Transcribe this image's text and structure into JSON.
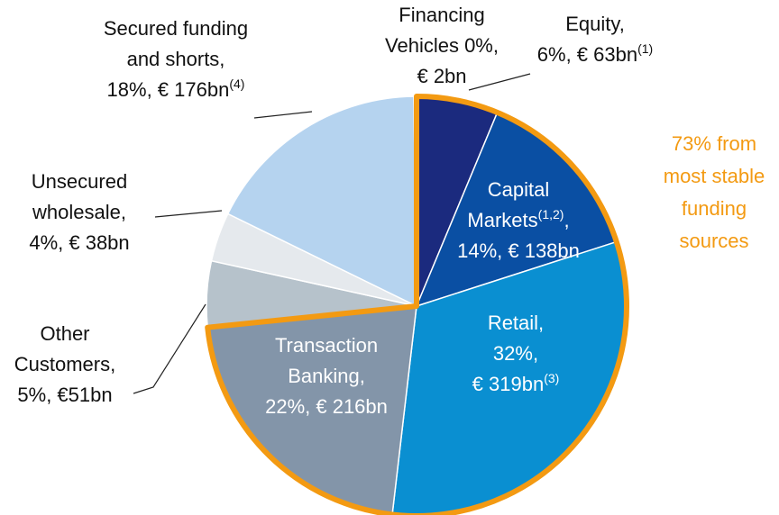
{
  "chart_data": {
    "type": "pie",
    "categories": [
      "Equity",
      "Capital Markets",
      "Retail",
      "Transaction Banking",
      "Other Customers",
      "Unsecured wholesale",
      "Secured funding and shorts",
      "Financing Vehicles"
    ],
    "values": [
      63,
      138,
      319,
      216,
      51,
      38,
      176,
      2
    ],
    "colors": [
      "#1b2a7e",
      "#0a4fa3",
      "#0a8fd1",
      "#8395a9",
      "#b6c2cb",
      "#e5e9ed",
      "#b5d3ef",
      "#d5e5f5"
    ],
    "labels": [
      [
        "Equity,",
        {
          "text": "6%, € 63bn",
          "sup": "(1)"
        }
      ],
      [
        "Capital",
        {
          "text": "Markets",
          "sup": "(1,2)",
          "tail": ","
        },
        "14%, € 138bn"
      ],
      [
        "Retail,",
        "32%,",
        {
          "text": "€ 319bn",
          "sup": "(3)"
        }
      ],
      [
        "Transaction",
        "Banking,",
        "22%, € 216bn"
      ],
      [
        "Other",
        "Customers,",
        "5%, €51bn"
      ],
      [
        "Unsecured",
        "wholesale,",
        "4%, € 38bn"
      ],
      [
        "Secured funding",
        "and shorts,",
        {
          "text": "18%, € 176bn",
          "sup": "(4)"
        }
      ],
      [
        "Financing",
        "Vehicles 0%,",
        "€ 2bn"
      ]
    ],
    "highlight": {
      "color": "#f39a12",
      "label": [
        "73% from",
        "most stable",
        "funding",
        "sources"
      ]
    }
  }
}
